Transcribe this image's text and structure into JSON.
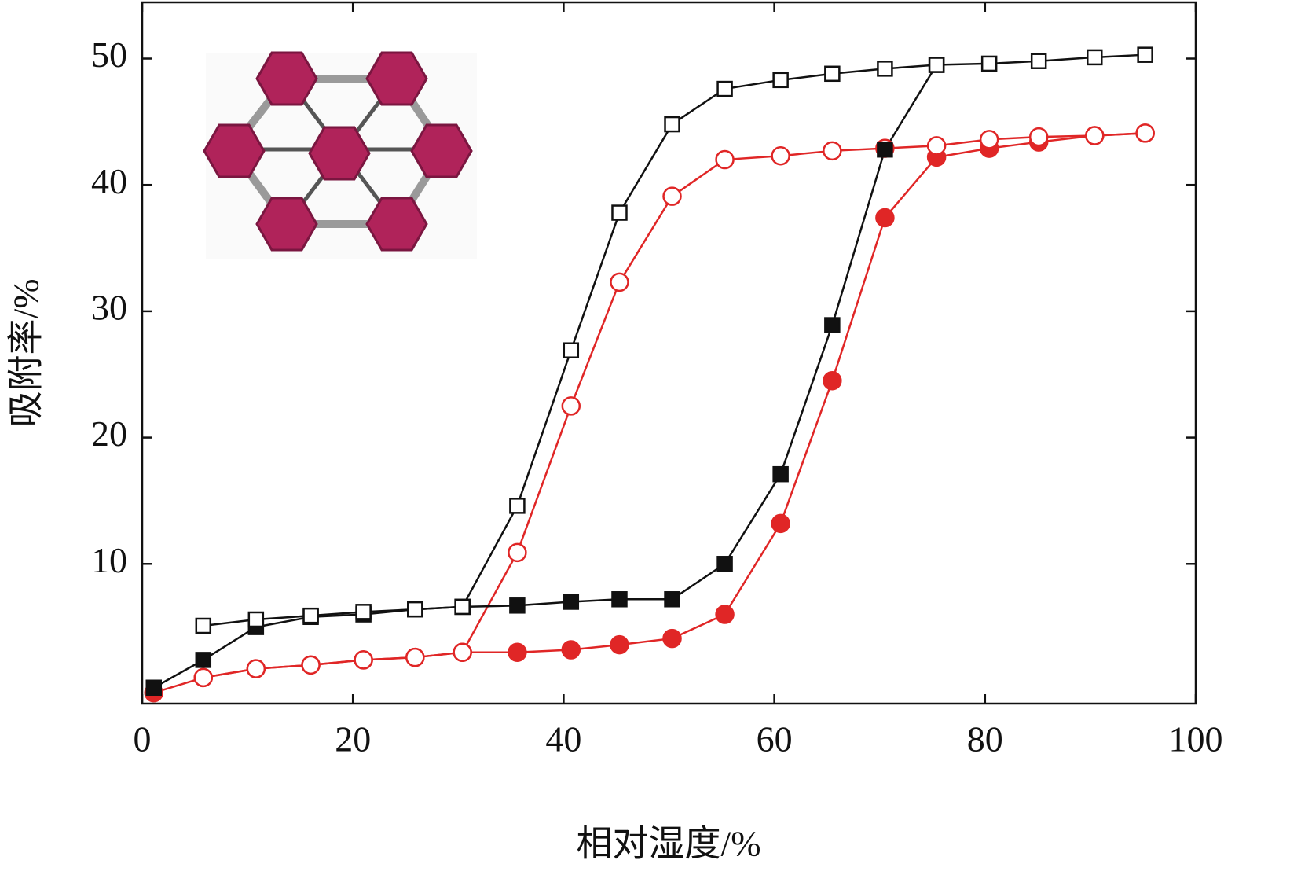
{
  "chart_data": {
    "type": "line",
    "xlabel": "相对湿度/%",
    "ylabel": "吸附率/%",
    "x": [
      1.1,
      5.8,
      10.8,
      16.0,
      21.0,
      25.9,
      30.4,
      35.6,
      40.7,
      45.3,
      50.3,
      55.3,
      60.6,
      65.5,
      70.5,
      75.4,
      80.4,
      85.1,
      90.4,
      95.2
    ],
    "series": [
      {
        "color": "#e02626",
        "marker": "circle",
        "filled": true,
        "values": [
          -0.2,
          1.0,
          1.7,
          2.0,
          2.4,
          2.6,
          3.0,
          3.0,
          3.2,
          3.6,
          4.1,
          6.0,
          13.2,
          24.5,
          37.4,
          42.2,
          42.9,
          43.4,
          43.9,
          44.1
        ]
      },
      {
        "color": "#e02626",
        "marker": "circle",
        "filled": false,
        "values": [
          null,
          1.0,
          1.7,
          2.0,
          2.4,
          2.6,
          3.0,
          10.9,
          22.5,
          32.3,
          39.1,
          42.0,
          42.3,
          42.7,
          42.9,
          43.1,
          43.6,
          43.8,
          43.9,
          44.1
        ]
      },
      {
        "color": "#111111",
        "marker": "square",
        "filled": true,
        "values": [
          0.2,
          2.4,
          5.0,
          5.8,
          6.0,
          6.4,
          6.6,
          6.7,
          7.0,
          7.2,
          7.2,
          10.0,
          17.1,
          28.9,
          42.8,
          49.5,
          null,
          null,
          null,
          null
        ]
      },
      {
        "color": "#111111",
        "marker": "square",
        "filled": false,
        "values": [
          null,
          5.1,
          5.6,
          5.9,
          6.2,
          6.4,
          6.6,
          14.6,
          26.9,
          37.8,
          44.8,
          47.6,
          48.3,
          48.8,
          49.2,
          49.5,
          49.6,
          49.8,
          50.1,
          50.3
        ]
      }
    ],
    "xlim": [
      0,
      100
    ],
    "ylim": [
      -1.06,
      54.45
    ],
    "xticks": [
      0,
      20,
      40,
      60,
      80,
      100
    ],
    "yticks": [
      10,
      20,
      30,
      40,
      50
    ]
  }
}
